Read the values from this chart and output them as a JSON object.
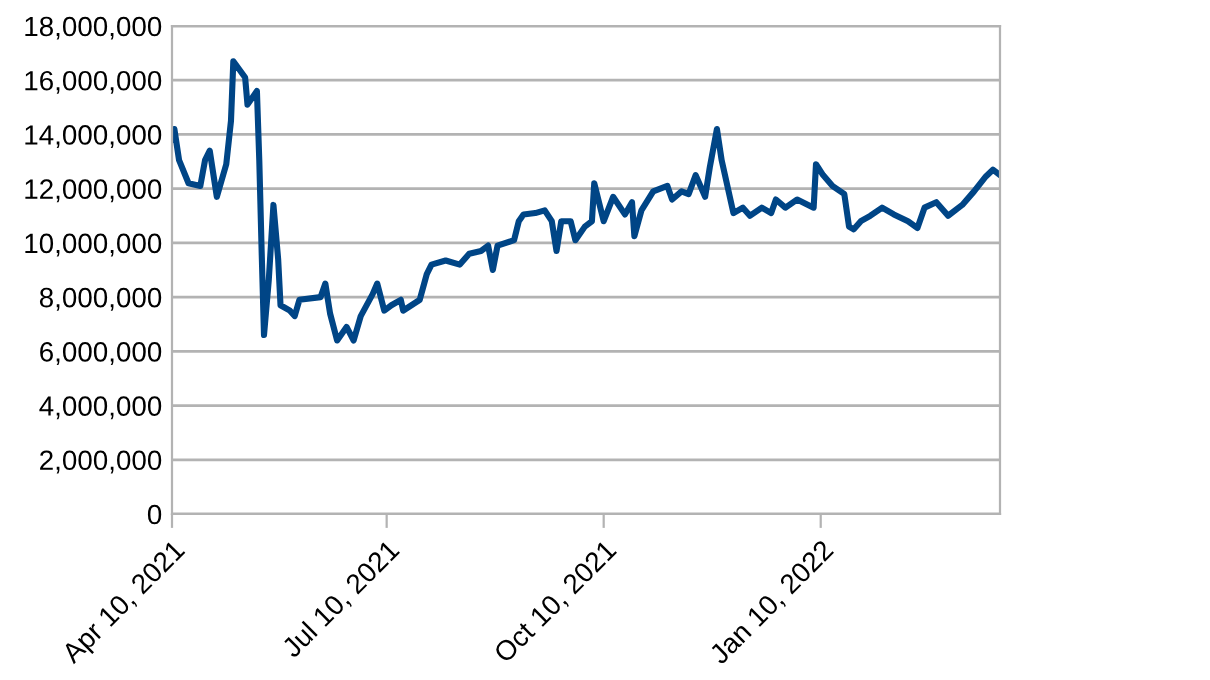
{
  "chart_data": {
    "type": "line",
    "grid": "y",
    "marker": "none",
    "line_style": "solid",
    "xlim": [
      "2021-04-10",
      "2022-03-27"
    ],
    "xticks": [
      {
        "value": "2021-04-10",
        "label": "Apr 10, 2021"
      },
      {
        "value": "2021-07-10",
        "label": "Jul 10, 2021"
      },
      {
        "value": "2021-10-10",
        "label": "Oct 10, 2021"
      },
      {
        "value": "2022-01-10",
        "label": "Jan 10, 2022"
      }
    ],
    "ylim": [
      0,
      18000000
    ],
    "yticks": [
      {
        "value": 0,
        "label": "0"
      },
      {
        "value": 2000000,
        "label": "2,000,000"
      },
      {
        "value": 4000000,
        "label": "4,000,000"
      },
      {
        "value": 6000000,
        "label": "6,000,000"
      },
      {
        "value": 8000000,
        "label": "8,000,000"
      },
      {
        "value": 10000000,
        "label": "10,000,000"
      },
      {
        "value": 12000000,
        "label": "12,000,000"
      },
      {
        "value": 14000000,
        "label": "14,000,000"
      },
      {
        "value": 16000000,
        "label": "16,000,000"
      },
      {
        "value": 18000000,
        "label": "18,000,000"
      }
    ],
    "x": [
      "2021-04-10",
      "2021-04-11",
      "2021-04-13",
      "2021-04-17",
      "2021-04-22",
      "2021-04-24",
      "2021-04-26",
      "2021-04-29",
      "2021-05-03",
      "2021-05-05",
      "2021-05-06",
      "2021-05-11",
      "2021-05-12",
      "2021-05-16",
      "2021-05-17",
      "2021-05-18",
      "2021-05-19",
      "2021-05-21",
      "2021-05-23",
      "2021-05-25",
      "2021-05-26",
      "2021-05-30",
      "2021-06-01",
      "2021-06-03",
      "2021-06-12",
      "2021-06-14",
      "2021-06-16",
      "2021-06-19",
      "2021-06-23",
      "2021-06-26",
      "2021-06-29",
      "2021-07-04",
      "2021-07-06",
      "2021-07-09",
      "2021-07-12",
      "2021-07-16",
      "2021-07-17",
      "2021-07-24",
      "2021-07-27",
      "2021-07-29",
      "2021-08-04",
      "2021-08-10",
      "2021-08-14",
      "2021-08-19",
      "2021-08-22",
      "2021-08-24",
      "2021-08-26",
      "2021-09-02",
      "2021-09-04",
      "2021-09-06",
      "2021-09-11",
      "2021-09-15",
      "2021-09-18",
      "2021-09-20",
      "2021-09-22",
      "2021-09-26",
      "2021-09-28",
      "2021-10-02",
      "2021-10-05",
      "2021-10-06",
      "2021-10-10",
      "2021-10-14",
      "2021-10-19",
      "2021-10-22",
      "2021-10-23",
      "2021-10-26",
      "2021-10-31",
      "2021-11-06",
      "2021-11-08",
      "2021-11-12",
      "2021-11-15",
      "2021-11-18",
      "2021-11-22",
      "2021-11-24",
      "2021-11-27",
      "2021-11-29",
      "2021-12-04",
      "2021-12-08",
      "2021-12-11",
      "2021-12-16",
      "2021-12-20",
      "2021-12-22",
      "2021-12-26",
      "2021-12-31",
      "2022-01-07",
      "2022-01-08",
      "2022-01-11",
      "2022-01-15",
      "2022-01-20",
      "2022-01-22",
      "2022-01-24",
      "2022-01-27",
      "2022-01-31",
      "2022-02-05",
      "2022-02-10",
      "2022-02-16",
      "2022-02-20",
      "2022-02-23",
      "2022-02-28",
      "2022-03-05",
      "2022-03-11",
      "2022-03-16",
      "2022-03-21",
      "2022-03-24",
      "2022-03-27"
    ],
    "series": [
      {
        "color": "#004586",
        "values": [
          13800000,
          14200000,
          13050000,
          12200000,
          12100000,
          13050000,
          13400000,
          11700000,
          12900000,
          14500000,
          16700000,
          16100000,
          15100000,
          15600000,
          13050000,
          9700000,
          6600000,
          8600000,
          11400000,
          9400000,
          7700000,
          7500000,
          7300000,
          7900000,
          8000000,
          8500000,
          7400000,
          6400000,
          6900000,
          6400000,
          7300000,
          8100000,
          8500000,
          7500000,
          7700000,
          7900000,
          7500000,
          7900000,
          8850000,
          9200000,
          9350000,
          9200000,
          9600000,
          9700000,
          9900000,
          9000000,
          9900000,
          10100000,
          10800000,
          11050000,
          11100000,
          11200000,
          10800000,
          9700000,
          10800000,
          10800000,
          10100000,
          10600000,
          10800000,
          12200000,
          10800000,
          11700000,
          11050000,
          11500000,
          10250000,
          11200000,
          11900000,
          12100000,
          11600000,
          11900000,
          11800000,
          12500000,
          11700000,
          12800000,
          14200000,
          13050000,
          11100000,
          11300000,
          11000000,
          11300000,
          11100000,
          11600000,
          11300000,
          11600000,
          11300000,
          12900000,
          12500000,
          12100000,
          11800000,
          10600000,
          10500000,
          10800000,
          11000000,
          11300000,
          11050000,
          10800000,
          10550000,
          11300000,
          11500000,
          11000000,
          11400000,
          11900000,
          12450000,
          12700000,
          12500000
        ]
      }
    ]
  }
}
